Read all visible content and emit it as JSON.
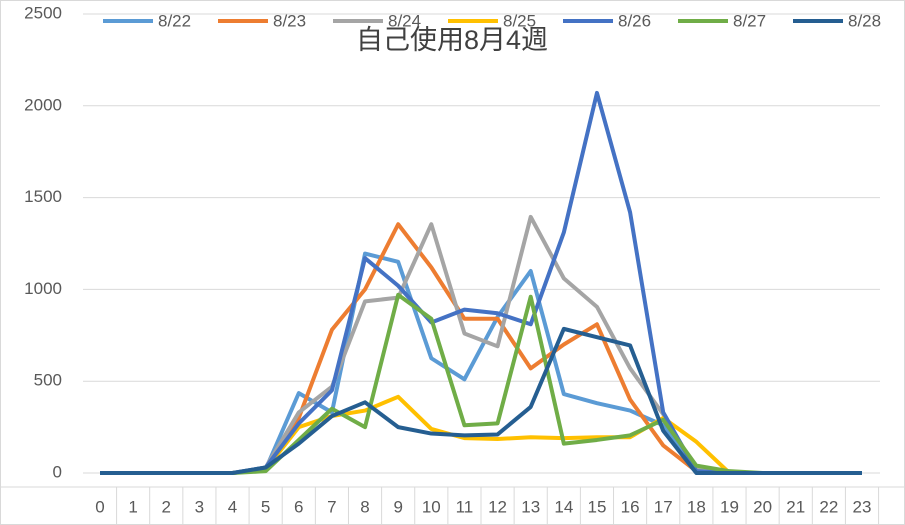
{
  "chart_data": {
    "type": "line",
    "title": "自己使用8月4週",
    "categories": [
      "0",
      "1",
      "2",
      "3",
      "4",
      "5",
      "6",
      "7",
      "8",
      "9",
      "10",
      "11",
      "12",
      "13",
      "14",
      "15",
      "16",
      "17",
      "18",
      "19",
      "20",
      "21",
      "22",
      "23"
    ],
    "ylim": [
      0,
      2500
    ],
    "yticks": [
      0,
      500,
      1000,
      1500,
      2000,
      2500
    ],
    "grid": true,
    "series": [
      {
        "name": "8/22",
        "color": "#5b9bd5",
        "values": [
          0,
          0,
          0,
          0,
          0,
          20,
          435,
          330,
          1195,
          1150,
          625,
          510,
          850,
          1100,
          430,
          380,
          340,
          260,
          20,
          0,
          0,
          0,
          0,
          0
        ]
      },
      {
        "name": "8/23",
        "color": "#ed7d31",
        "values": [
          0,
          0,
          0,
          0,
          0,
          20,
          300,
          780,
          1000,
          1355,
          1120,
          840,
          840,
          570,
          700,
          810,
          400,
          150,
          10,
          0,
          0,
          0,
          0,
          0
        ]
      },
      {
        "name": "8/24",
        "color": "#a5a5a5",
        "values": [
          0,
          0,
          0,
          0,
          0,
          30,
          330,
          470,
          935,
          955,
          1355,
          760,
          690,
          1395,
          1060,
          905,
          570,
          320,
          20,
          0,
          0,
          0,
          0,
          0
        ]
      },
      {
        "name": "8/25",
        "color": "#ffc000",
        "values": [
          0,
          0,
          0,
          0,
          0,
          20,
          250,
          310,
          340,
          415,
          240,
          190,
          185,
          195,
          190,
          195,
          195,
          300,
          170,
          0,
          0,
          0,
          0,
          0
        ]
      },
      {
        "name": "8/26",
        "color": "#4472c4",
        "values": [
          0,
          0,
          0,
          0,
          0,
          30,
          270,
          450,
          1170,
          1020,
          820,
          890,
          870,
          810,
          1310,
          2070,
          1420,
          330,
          10,
          0,
          0,
          0,
          0,
          0
        ]
      },
      {
        "name": "8/27",
        "color": "#70ad47",
        "values": [
          0,
          0,
          0,
          0,
          0,
          10,
          180,
          350,
          250,
          970,
          840,
          260,
          270,
          960,
          160,
          180,
          205,
          290,
          40,
          10,
          0,
          0,
          0,
          0
        ]
      },
      {
        "name": "8/28",
        "color": "#255e91",
        "values": [
          0,
          0,
          0,
          0,
          0,
          30,
          160,
          310,
          385,
          250,
          215,
          205,
          210,
          360,
          785,
          740,
          695,
          230,
          0,
          0,
          0,
          0,
          0,
          0
        ]
      }
    ]
  }
}
